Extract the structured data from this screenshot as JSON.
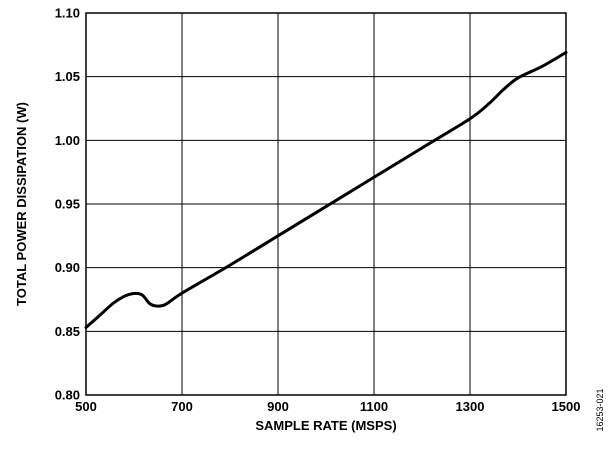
{
  "chart_data": {
    "type": "line",
    "xlabel": "SAMPLE RATE (MSPS)",
    "ylabel": "TOTAL POWER DISSIPATION (W)",
    "xlim": [
      500,
      1500
    ],
    "ylim": [
      0.8,
      1.1
    ],
    "x_ticks": [
      500,
      700,
      900,
      1100,
      1300,
      1500
    ],
    "x_tick_labels": [
      "500",
      "700",
      "900",
      "1100",
      "1300",
      "1500"
    ],
    "y_ticks": [
      0.8,
      0.85,
      0.9,
      0.95,
      1.0,
      1.05,
      1.1
    ],
    "y_tick_labels": [
      "0.80",
      "0.85",
      "0.90",
      "0.95",
      "1.00",
      "1.05",
      "1.10"
    ],
    "grid": true,
    "series": [
      {
        "x": [
          500,
          530,
          560,
          590,
          615,
          632,
          645,
          665,
          700,
          800,
          900,
          1000,
          1100,
          1200,
          1300,
          1340,
          1370,
          1400,
          1450,
          1500
        ],
        "y": [
          0.853,
          0.863,
          0.873,
          0.879,
          0.879,
          0.872,
          0.87,
          0.871,
          0.88,
          0.902,
          0.925,
          0.948,
          0.971,
          0.994,
          1.017,
          1.029,
          1.04,
          1.049,
          1.058,
          1.069
        ],
        "color": "#000000"
      }
    ],
    "figure_code": "16253-021"
  }
}
